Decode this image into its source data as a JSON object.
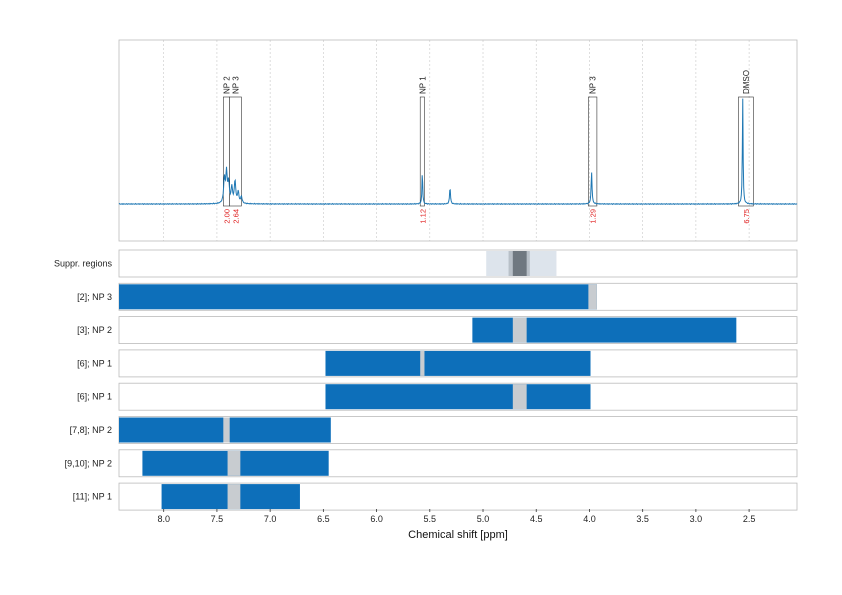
{
  "chart_data": {
    "type": "nmr_spectrum_with_region_bars",
    "xlabel": "Chemical shift [ppm]",
    "xlim": [
      8.42,
      2.05
    ],
    "xticks": [
      8.0,
      7.5,
      7.0,
      6.5,
      6.0,
      5.5,
      5.0,
      4.5,
      4.0,
      3.5,
      3.0,
      2.5
    ],
    "xtick_labels": [
      "8.0",
      "7.5",
      "7.0",
      "6.5",
      "6.0",
      "5.5",
      "5.0",
      "4.5",
      "4.0",
      "3.5",
      "3.0",
      "2.5"
    ],
    "grid": "vertical dashed",
    "colors": {
      "spectrum": "#1f78b4",
      "bar": "#0d6fba",
      "gap": "#c8ccd0",
      "suppr_outer": "#dde4ec",
      "suppr_mid": "#b8c0c8",
      "suppr_inner": "#6f7880",
      "integral": "#e02020",
      "frame": "#bbbbbb"
    },
    "spectrum_peaks": [
      {
        "ppm": 7.43,
        "height": 0.22,
        "width": 0.008
      },
      {
        "ppm": 7.41,
        "height": 0.27,
        "width": 0.008
      },
      {
        "ppm": 7.39,
        "height": 0.18,
        "width": 0.008
      },
      {
        "ppm": 7.36,
        "height": 0.14,
        "width": 0.008
      },
      {
        "ppm": 7.33,
        "height": 0.2,
        "width": 0.008
      },
      {
        "ppm": 7.3,
        "height": 0.1,
        "width": 0.008
      },
      {
        "ppm": 7.27,
        "height": 0.06,
        "width": 0.008
      },
      {
        "ppm": 5.57,
        "height": 0.3,
        "width": 0.004
      },
      {
        "ppm": 5.31,
        "height": 0.15,
        "width": 0.005
      },
      {
        "ppm": 3.98,
        "height": 0.29,
        "width": 0.005
      },
      {
        "ppm": 2.56,
        "height": 0.95,
        "width": 0.004
      }
    ],
    "annotations": [
      {
        "label": "NP 2",
        "from": 7.44,
        "to": 7.38,
        "integral": "2.00"
      },
      {
        "label": "NP 3",
        "from": 7.38,
        "to": 7.27,
        "integral": "2.64"
      },
      {
        "label": "NP 1",
        "from": 5.59,
        "to": 5.55,
        "integral": "1.12"
      },
      {
        "label": "NP 3",
        "from": 4.01,
        "to": 3.93,
        "integral": "1.29"
      },
      {
        "label": "DMSO",
        "from": 2.6,
        "to": 2.46,
        "integral": "6.75"
      }
    ],
    "suppression_row": {
      "label": "Suppr. regions",
      "outer": [
        4.97,
        4.31
      ],
      "mid": [
        4.76,
        4.56
      ],
      "inner": [
        4.72,
        4.59
      ]
    },
    "rows": [
      {
        "label": "[2]; NP 3",
        "range": [
          8.42,
          3.93
        ],
        "gaps": [
          [
            4.01,
            3.93
          ]
        ]
      },
      {
        "label": "[3]; NP 2",
        "range": [
          5.1,
          2.62
        ],
        "gaps": [
          [
            4.72,
            4.59
          ]
        ]
      },
      {
        "label": "[6]; NP 1",
        "range": [
          6.48,
          3.99
        ],
        "gaps": [
          [
            5.59,
            5.55
          ]
        ]
      },
      {
        "label": "[6]; NP 1",
        "range": [
          6.48,
          3.99
        ],
        "gaps": [
          [
            4.72,
            4.59
          ]
        ]
      },
      {
        "label": "[7,8]; NP 2",
        "range": [
          8.42,
          6.43
        ],
        "gaps": [
          [
            7.44,
            7.38
          ]
        ]
      },
      {
        "label": "[9,10]; NP 2",
        "range": [
          8.2,
          6.45
        ],
        "gaps": [
          [
            7.4,
            7.28
          ]
        ]
      },
      {
        "label": "[11]; NP 1",
        "range": [
          8.02,
          6.72
        ],
        "gaps": [
          [
            7.4,
            7.28
          ]
        ]
      }
    ]
  }
}
